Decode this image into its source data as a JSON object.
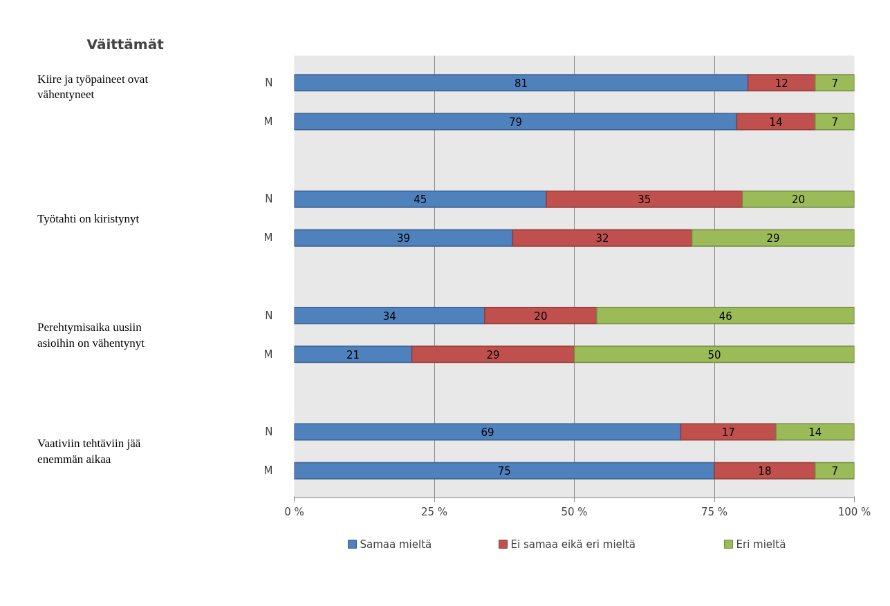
{
  "chart_data": {
    "type": "bar",
    "orientation": "horizontal",
    "stacked": true,
    "title": "Väittämät",
    "categories": [
      "N",
      "M",
      null,
      "N",
      "M",
      null,
      "N",
      "M",
      null,
      "N",
      "M"
    ],
    "series": [
      {
        "name": "Samaa mieltä",
        "color": "#4f81bd",
        "values": [
          81,
          79,
          null,
          45,
          39,
          null,
          34,
          21,
          null,
          69,
          75
        ]
      },
      {
        "name": "Ei samaa eikä eri mieltä",
        "color": "#c0504d",
        "values": [
          12,
          14,
          null,
          35,
          32,
          null,
          20,
          29,
          null,
          17,
          18
        ]
      },
      {
        "name": "Eri mieltä",
        "color": "#9bbb59",
        "values": [
          7,
          7,
          null,
          20,
          29,
          null,
          46,
          50,
          null,
          14,
          7
        ]
      }
    ],
    "annotations": [
      "Kiire ja työpaineet ovat vähentyneet",
      "Työtahti on kiristynyt",
      "Perehtymisaika uusiin asioihin on vähentynyt",
      "Vaativiin tehtäviin jää enemmän aikaa"
    ],
    "xlim": [
      0,
      100
    ],
    "xticks": [
      {
        "value": 0,
        "label": "0 %"
      },
      {
        "value": 25,
        "label": "25 %"
      },
      {
        "value": 50,
        "label": "50 %"
      },
      {
        "value": 75,
        "label": "75 %"
      },
      {
        "value": 100,
        "label": "100 %"
      }
    ],
    "grid": "x",
    "legend": "bottom",
    "data_labels": true
  }
}
